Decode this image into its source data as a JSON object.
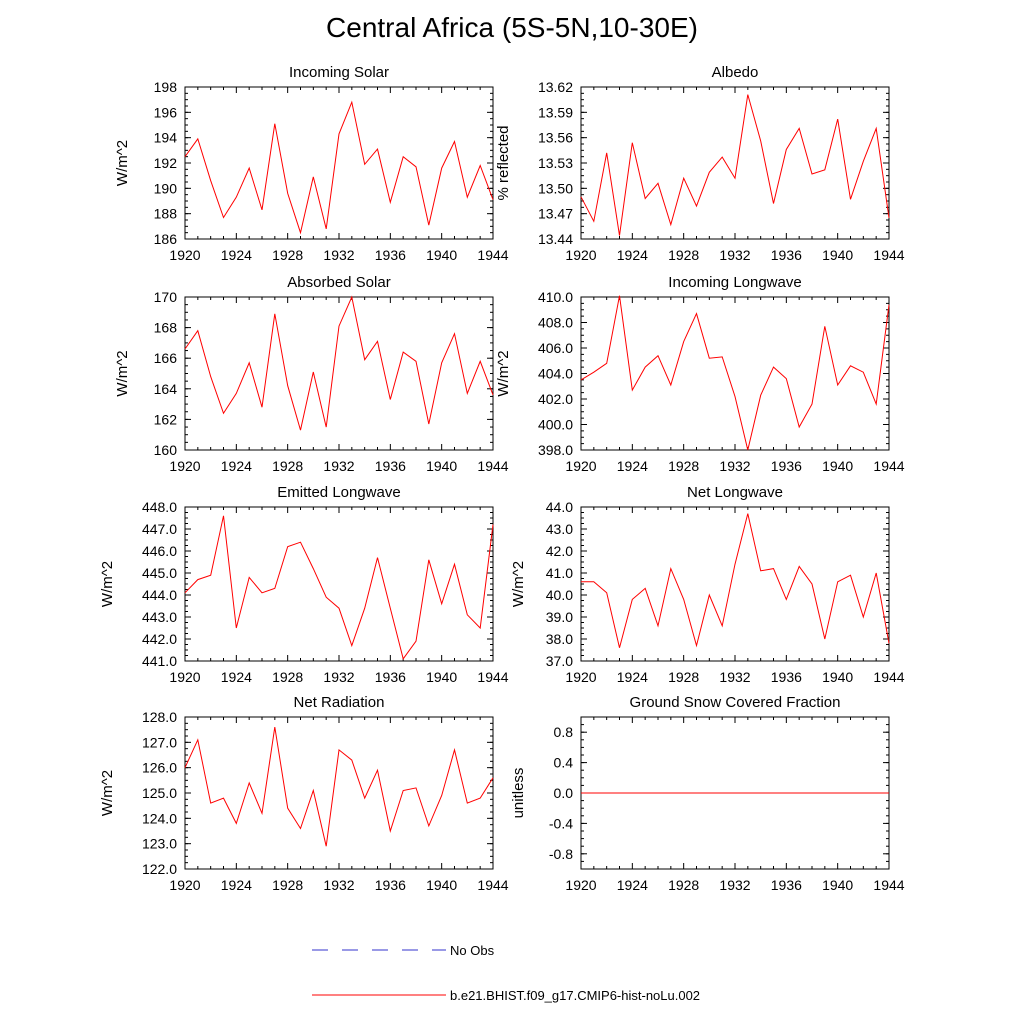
{
  "figure": {
    "title": "Central Africa (5S-5N,10-30E)"
  },
  "legend": {
    "entries": [
      {
        "label": "No Obs",
        "color": "#3333cc",
        "style": "dashed"
      },
      {
        "label": "b.e21.BHIST.f09_g17.CMIP6-hist-noLu.002",
        "color": "#ff0000",
        "style": "solid"
      }
    ]
  },
  "colors": {
    "series": "#ff0000",
    "obs": "#3333cc",
    "axis": "#000000"
  },
  "chart_data": [
    {
      "type": "line",
      "title": "Incoming Solar",
      "ylabel": "W/m^2",
      "xlim": [
        1920,
        1944
      ],
      "ylim": [
        186,
        198
      ],
      "x_ticks": [
        "1920",
        "1924",
        "1928",
        "1932",
        "1936",
        "1940",
        "1944"
      ],
      "y_ticks": [
        "186",
        "188",
        "190",
        "192",
        "194",
        "196",
        "198"
      ],
      "x": [
        1920,
        1921,
        1922,
        1923,
        1924,
        1925,
        1926,
        1927,
        1928,
        1929,
        1930,
        1931,
        1932,
        1933,
        1934,
        1935,
        1936,
        1937,
        1938,
        1939,
        1940,
        1941,
        1942,
        1943,
        1944
      ],
      "series": [
        {
          "name": "b.e21.BHIST.f09_g17.CMIP6-hist-noLu.002",
          "values": [
            192.5,
            193.9,
            190.6,
            187.7,
            189.3,
            191.6,
            188.3,
            195.1,
            189.6,
            186.5,
            190.9,
            186.8,
            194.3,
            196.8,
            191.9,
            193.1,
            188.9,
            192.5,
            191.7,
            187.1,
            191.6,
            193.7,
            189.3,
            191.8,
            189.1
          ]
        }
      ]
    },
    {
      "type": "line",
      "title": "Albedo",
      "ylabel": "% reflected",
      "xlim": [
        1920,
        1944
      ],
      "ylim": [
        13.44,
        13.62
      ],
      "x_ticks": [
        "1920",
        "1924",
        "1928",
        "1932",
        "1936",
        "1940",
        "1944"
      ],
      "y_ticks": [
        "13.44",
        "13.47",
        "13.50",
        "13.53",
        "13.56",
        "13.59",
        "13.62"
      ],
      "x": [
        1920,
        1921,
        1922,
        1923,
        1924,
        1925,
        1926,
        1927,
        1928,
        1929,
        1930,
        1931,
        1932,
        1933,
        1934,
        1935,
        1936,
        1937,
        1938,
        1939,
        1940,
        1941,
        1942,
        1943,
        1944
      ],
      "series": [
        {
          "name": "b.e21.BHIST.f09_g17.CMIP6-hist-noLu.002",
          "values": [
            13.49,
            13.461,
            13.542,
            13.444,
            13.554,
            13.488,
            13.506,
            13.457,
            13.512,
            13.479,
            13.519,
            13.537,
            13.512,
            13.611,
            13.556,
            13.482,
            13.546,
            13.571,
            13.517,
            13.522,
            13.582,
            13.487,
            13.532,
            13.571,
            13.465
          ]
        }
      ]
    },
    {
      "type": "line",
      "title": "Absorbed Solar",
      "ylabel": "W/m^2",
      "xlim": [
        1920,
        1944
      ],
      "ylim": [
        160,
        170
      ],
      "x_ticks": [
        "1920",
        "1924",
        "1928",
        "1932",
        "1936",
        "1940",
        "1944"
      ],
      "y_ticks": [
        "160",
        "162",
        "164",
        "166",
        "168",
        "170"
      ],
      "x": [
        1920,
        1921,
        1922,
        1923,
        1924,
        1925,
        1926,
        1927,
        1928,
        1929,
        1930,
        1931,
        1932,
        1933,
        1934,
        1935,
        1936,
        1937,
        1938,
        1939,
        1940,
        1941,
        1942,
        1943,
        1944
      ],
      "series": [
        {
          "name": "b.e21.BHIST.f09_g17.CMIP6-hist-noLu.002",
          "values": [
            166.6,
            167.8,
            164.8,
            162.4,
            163.7,
            165.7,
            162.8,
            168.9,
            164.2,
            161.3,
            165.1,
            161.5,
            168.1,
            170.0,
            165.9,
            167.1,
            163.3,
            166.4,
            165.8,
            161.7,
            165.7,
            167.6,
            163.7,
            165.8,
            163.6
          ]
        }
      ]
    },
    {
      "type": "line",
      "title": "Incoming Longwave",
      "ylabel": "W/m^2",
      "xlim": [
        1920,
        1944
      ],
      "ylim": [
        398,
        410
      ],
      "x_ticks": [
        "1920",
        "1924",
        "1928",
        "1932",
        "1936",
        "1940",
        "1944"
      ],
      "y_ticks": [
        "398.0",
        "400.0",
        "402.0",
        "404.0",
        "406.0",
        "408.0",
        "410.0"
      ],
      "x": [
        1920,
        1921,
        1922,
        1923,
        1924,
        1925,
        1926,
        1927,
        1928,
        1929,
        1930,
        1931,
        1932,
        1933,
        1934,
        1935,
        1936,
        1937,
        1938,
        1939,
        1940,
        1941,
        1942,
        1943,
        1944
      ],
      "series": [
        {
          "name": "b.e21.BHIST.f09_g17.CMIP6-hist-noLu.002",
          "values": [
            403.5,
            404.1,
            404.8,
            410.1,
            402.7,
            404.5,
            405.4,
            403.1,
            406.5,
            408.7,
            405.2,
            405.3,
            402.2,
            398.0,
            402.3,
            404.5,
            403.6,
            399.8,
            401.6,
            407.7,
            403.1,
            404.6,
            404.1,
            401.6,
            409.4
          ]
        }
      ]
    },
    {
      "type": "line",
      "title": "Emitted Longwave",
      "ylabel": "W/m^2",
      "xlim": [
        1920,
        1944
      ],
      "ylim": [
        441,
        448
      ],
      "x_ticks": [
        "1920",
        "1924",
        "1928",
        "1932",
        "1936",
        "1940",
        "1944"
      ],
      "y_ticks": [
        "441.0",
        "442.0",
        "443.0",
        "444.0",
        "445.0",
        "446.0",
        "447.0",
        "448.0"
      ],
      "x": [
        1920,
        1921,
        1922,
        1923,
        1924,
        1925,
        1926,
        1927,
        1928,
        1929,
        1930,
        1931,
        1932,
        1933,
        1934,
        1935,
        1936,
        1937,
        1938,
        1939,
        1940,
        1941,
        1942,
        1943,
        1944
      ],
      "series": [
        {
          "name": "b.e21.BHIST.f09_g17.CMIP6-hist-noLu.002",
          "values": [
            444.1,
            444.7,
            444.9,
            447.6,
            442.5,
            444.8,
            444.1,
            444.3,
            446.2,
            446.4,
            445.2,
            443.9,
            443.4,
            441.7,
            443.4,
            445.7,
            443.4,
            441.1,
            441.9,
            445.6,
            443.6,
            445.4,
            443.1,
            442.5,
            447.2
          ]
        }
      ]
    },
    {
      "type": "line",
      "title": "Net Longwave",
      "ylabel": "W/m^2",
      "xlim": [
        1920,
        1944
      ],
      "ylim": [
        37,
        44
      ],
      "x_ticks": [
        "1920",
        "1924",
        "1928",
        "1932",
        "1936",
        "1940",
        "1944"
      ],
      "y_ticks": [
        "37.0",
        "38.0",
        "39.0",
        "40.0",
        "41.0",
        "42.0",
        "43.0",
        "44.0"
      ],
      "x": [
        1920,
        1921,
        1922,
        1923,
        1924,
        1925,
        1926,
        1927,
        1928,
        1929,
        1930,
        1931,
        1932,
        1933,
        1934,
        1935,
        1936,
        1937,
        1938,
        1939,
        1940,
        1941,
        1942,
        1943,
        1944
      ],
      "series": [
        {
          "name": "b.e21.BHIST.f09_g17.CMIP6-hist-noLu.002",
          "values": [
            40.6,
            40.6,
            40.1,
            37.6,
            39.8,
            40.3,
            38.6,
            41.2,
            39.8,
            37.7,
            40.0,
            38.6,
            41.4,
            43.7,
            41.1,
            41.2,
            39.8,
            41.3,
            40.5,
            38.0,
            40.6,
            40.9,
            39.0,
            41.0,
            37.8
          ]
        }
      ]
    },
    {
      "type": "line",
      "title": "Net Radiation",
      "ylabel": "W/m^2",
      "xlim": [
        1920,
        1944
      ],
      "ylim": [
        122,
        128
      ],
      "x_ticks": [
        "1920",
        "1924",
        "1928",
        "1932",
        "1936",
        "1940",
        "1944"
      ],
      "y_ticks": [
        "122.0",
        "123.0",
        "124.0",
        "125.0",
        "126.0",
        "127.0",
        "128.0"
      ],
      "x": [
        1920,
        1921,
        1922,
        1923,
        1924,
        1925,
        1926,
        1927,
        1928,
        1929,
        1930,
        1931,
        1932,
        1933,
        1934,
        1935,
        1936,
        1937,
        1938,
        1939,
        1940,
        1941,
        1942,
        1943,
        1944
      ],
      "series": [
        {
          "name": "b.e21.BHIST.f09_g17.CMIP6-hist-noLu.002",
          "values": [
            126.0,
            127.1,
            124.6,
            124.8,
            123.8,
            125.4,
            124.2,
            127.6,
            124.4,
            123.6,
            125.1,
            122.9,
            126.7,
            126.3,
            124.8,
            125.9,
            123.5,
            125.1,
            125.2,
            123.7,
            124.9,
            126.7,
            124.6,
            124.8,
            125.6
          ]
        }
      ]
    },
    {
      "type": "line",
      "title": "Ground Snow Covered Fraction",
      "ylabel": "unitless",
      "xlim": [
        1920,
        1944
      ],
      "ylim": [
        -1.0,
        1.0
      ],
      "x_ticks": [
        "1920",
        "1924",
        "1928",
        "1932",
        "1936",
        "1940",
        "1944"
      ],
      "y_ticks": [
        "-0.8",
        "-0.4",
        "0.0",
        "0.4",
        "0.8"
      ],
      "x": [
        1920,
        1944
      ],
      "series": [
        {
          "name": "b.e21.BHIST.f09_g17.CMIP6-hist-noLu.002",
          "values": [
            0.0,
            0.0
          ]
        }
      ]
    }
  ]
}
